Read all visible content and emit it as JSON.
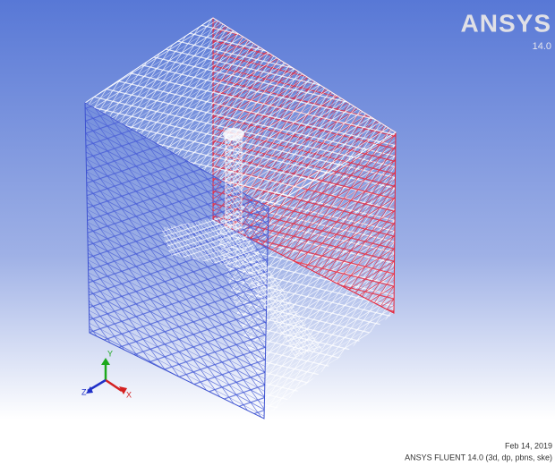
{
  "logo": {
    "brand": "ANSYS",
    "version": "14.0"
  },
  "footer": {
    "date": "Feb 14, 2019",
    "product": "ANSYS FLUENT 14.0 (3d, dp, pbns, ske)"
  },
  "triad": {
    "y": "Y",
    "z": "Z",
    "x": "X"
  }
}
